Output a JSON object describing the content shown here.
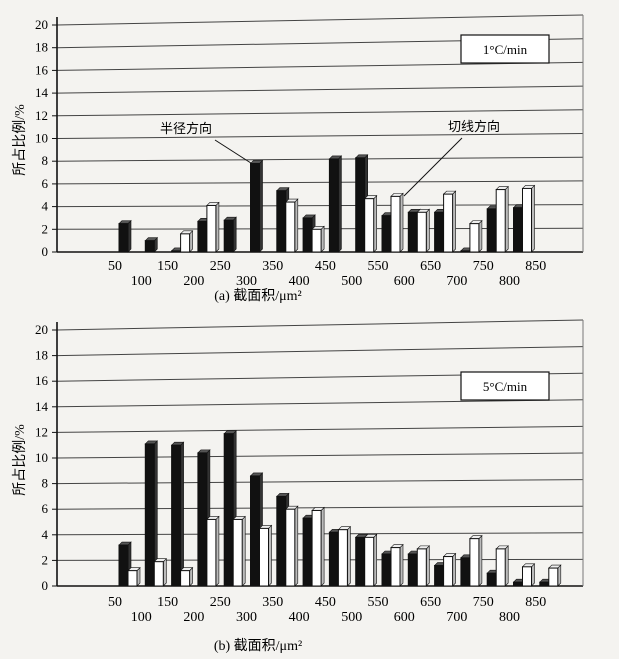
{
  "chart_data": [
    {
      "type": "bar",
      "caption": "(a) 截面积/μm²",
      "ylabel": "所占比例/%",
      "condition": "1°C/min",
      "ylim": [
        0,
        20
      ],
      "yticks": [
        "0",
        "2",
        "4",
        "6",
        "8",
        "10",
        "12",
        "14",
        "16",
        "18",
        "20"
      ],
      "categories": [
        "50",
        "100",
        "150",
        "200",
        "250",
        "300",
        "350",
        "400",
        "450",
        "500",
        "550",
        "600",
        "650",
        "700",
        "750",
        "800",
        "850"
      ],
      "series": [
        {
          "name": "半径方向",
          "fill": "#111111",
          "values": [
            2.5,
            1.0,
            0.1,
            2.7,
            2.8,
            7.8,
            5.4,
            3.0,
            8.2,
            8.3,
            3.2,
            3.5,
            3.5,
            0.1,
            3.8,
            3.9,
            0.0
          ]
        },
        {
          "name": "切线方向",
          "fill": "#ffffff",
          "values": [
            0.0,
            0.0,
            1.6,
            4.1,
            0.0,
            0.0,
            4.4,
            2.0,
            0.0,
            4.7,
            4.9,
            3.5,
            5.1,
            2.5,
            5.5,
            5.6,
            0.0
          ]
        }
      ],
      "annotations": [
        "半径方向",
        "切线方向"
      ]
    },
    {
      "type": "bar",
      "caption": "(b) 截面积/μm²",
      "ylabel": "所占比例/%",
      "condition": "5°C/min",
      "ylim": [
        0,
        20
      ],
      "yticks": [
        "0",
        "2",
        "4",
        "6",
        "8",
        "10",
        "12",
        "14",
        "16",
        "18",
        "20"
      ],
      "categories": [
        "50",
        "100",
        "150",
        "200",
        "250",
        "300",
        "350",
        "400",
        "450",
        "500",
        "550",
        "600",
        "650",
        "700",
        "750",
        "800",
        "850"
      ],
      "series": [
        {
          "name": "半径方向",
          "fill": "#111111",
          "values": [
            3.2,
            11.1,
            11.0,
            10.4,
            11.9,
            8.6,
            7.0,
            5.3,
            4.2,
            3.8,
            2.5,
            2.5,
            1.6,
            2.2,
            1.0,
            0.3,
            0.3
          ]
        },
        {
          "name": "切线方向",
          "fill": "#ffffff",
          "values": [
            1.2,
            1.9,
            1.2,
            5.2,
            5.2,
            4.5,
            6.0,
            5.9,
            4.4,
            3.8,
            3.0,
            2.9,
            2.3,
            3.7,
            2.9,
            1.5,
            1.4
          ]
        }
      ],
      "annotations": []
    }
  ]
}
